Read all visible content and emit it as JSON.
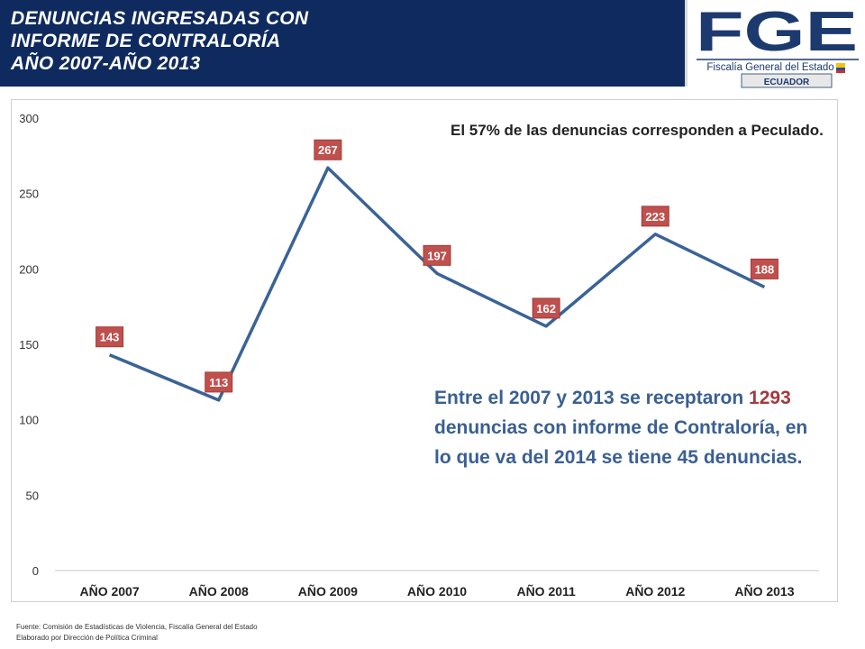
{
  "header": {
    "line1": "DENUNCIAS INGRESADAS CON",
    "line2": "INFORME DE CONTRALORÍA",
    "line3": "AÑO 2007-AÑO 2013"
  },
  "logo": {
    "letters": "FGE",
    "subtitle": "Fiscalía General del Estado",
    "country": "ECUADOR"
  },
  "chart_data": {
    "type": "line",
    "categories": [
      "AÑO 2007",
      "AÑO 2008",
      "AÑO 2009",
      "AÑO 2010",
      "AÑO 2011",
      "AÑO 2012",
      "AÑO 2013"
    ],
    "values": [
      143,
      113,
      267,
      197,
      162,
      223,
      188
    ],
    "ylim": [
      0,
      300
    ],
    "yticks": [
      0,
      50,
      100,
      150,
      200,
      250,
      300
    ],
    "grid": false,
    "legend": "none",
    "colors": {
      "line": "#3a6397",
      "label_bg": "#c0504d",
      "label_border": "#a23b38"
    }
  },
  "notes": {
    "note1": "El 57% de las denuncias corresponden a Peculado.",
    "note2_before": "Entre el 2007 y 2013 se receptaron ",
    "note2_highlight": "1293",
    "note2_after": " denuncias con informe de Contraloría, en lo que va del 2014 se tiene 45 denuncias."
  },
  "footer": {
    "source": "Fuente: Comisión de Estadísticas de Violencia, Fiscalía General del Estado",
    "credit": "Elaborado por Dirección de Política Criminal"
  }
}
